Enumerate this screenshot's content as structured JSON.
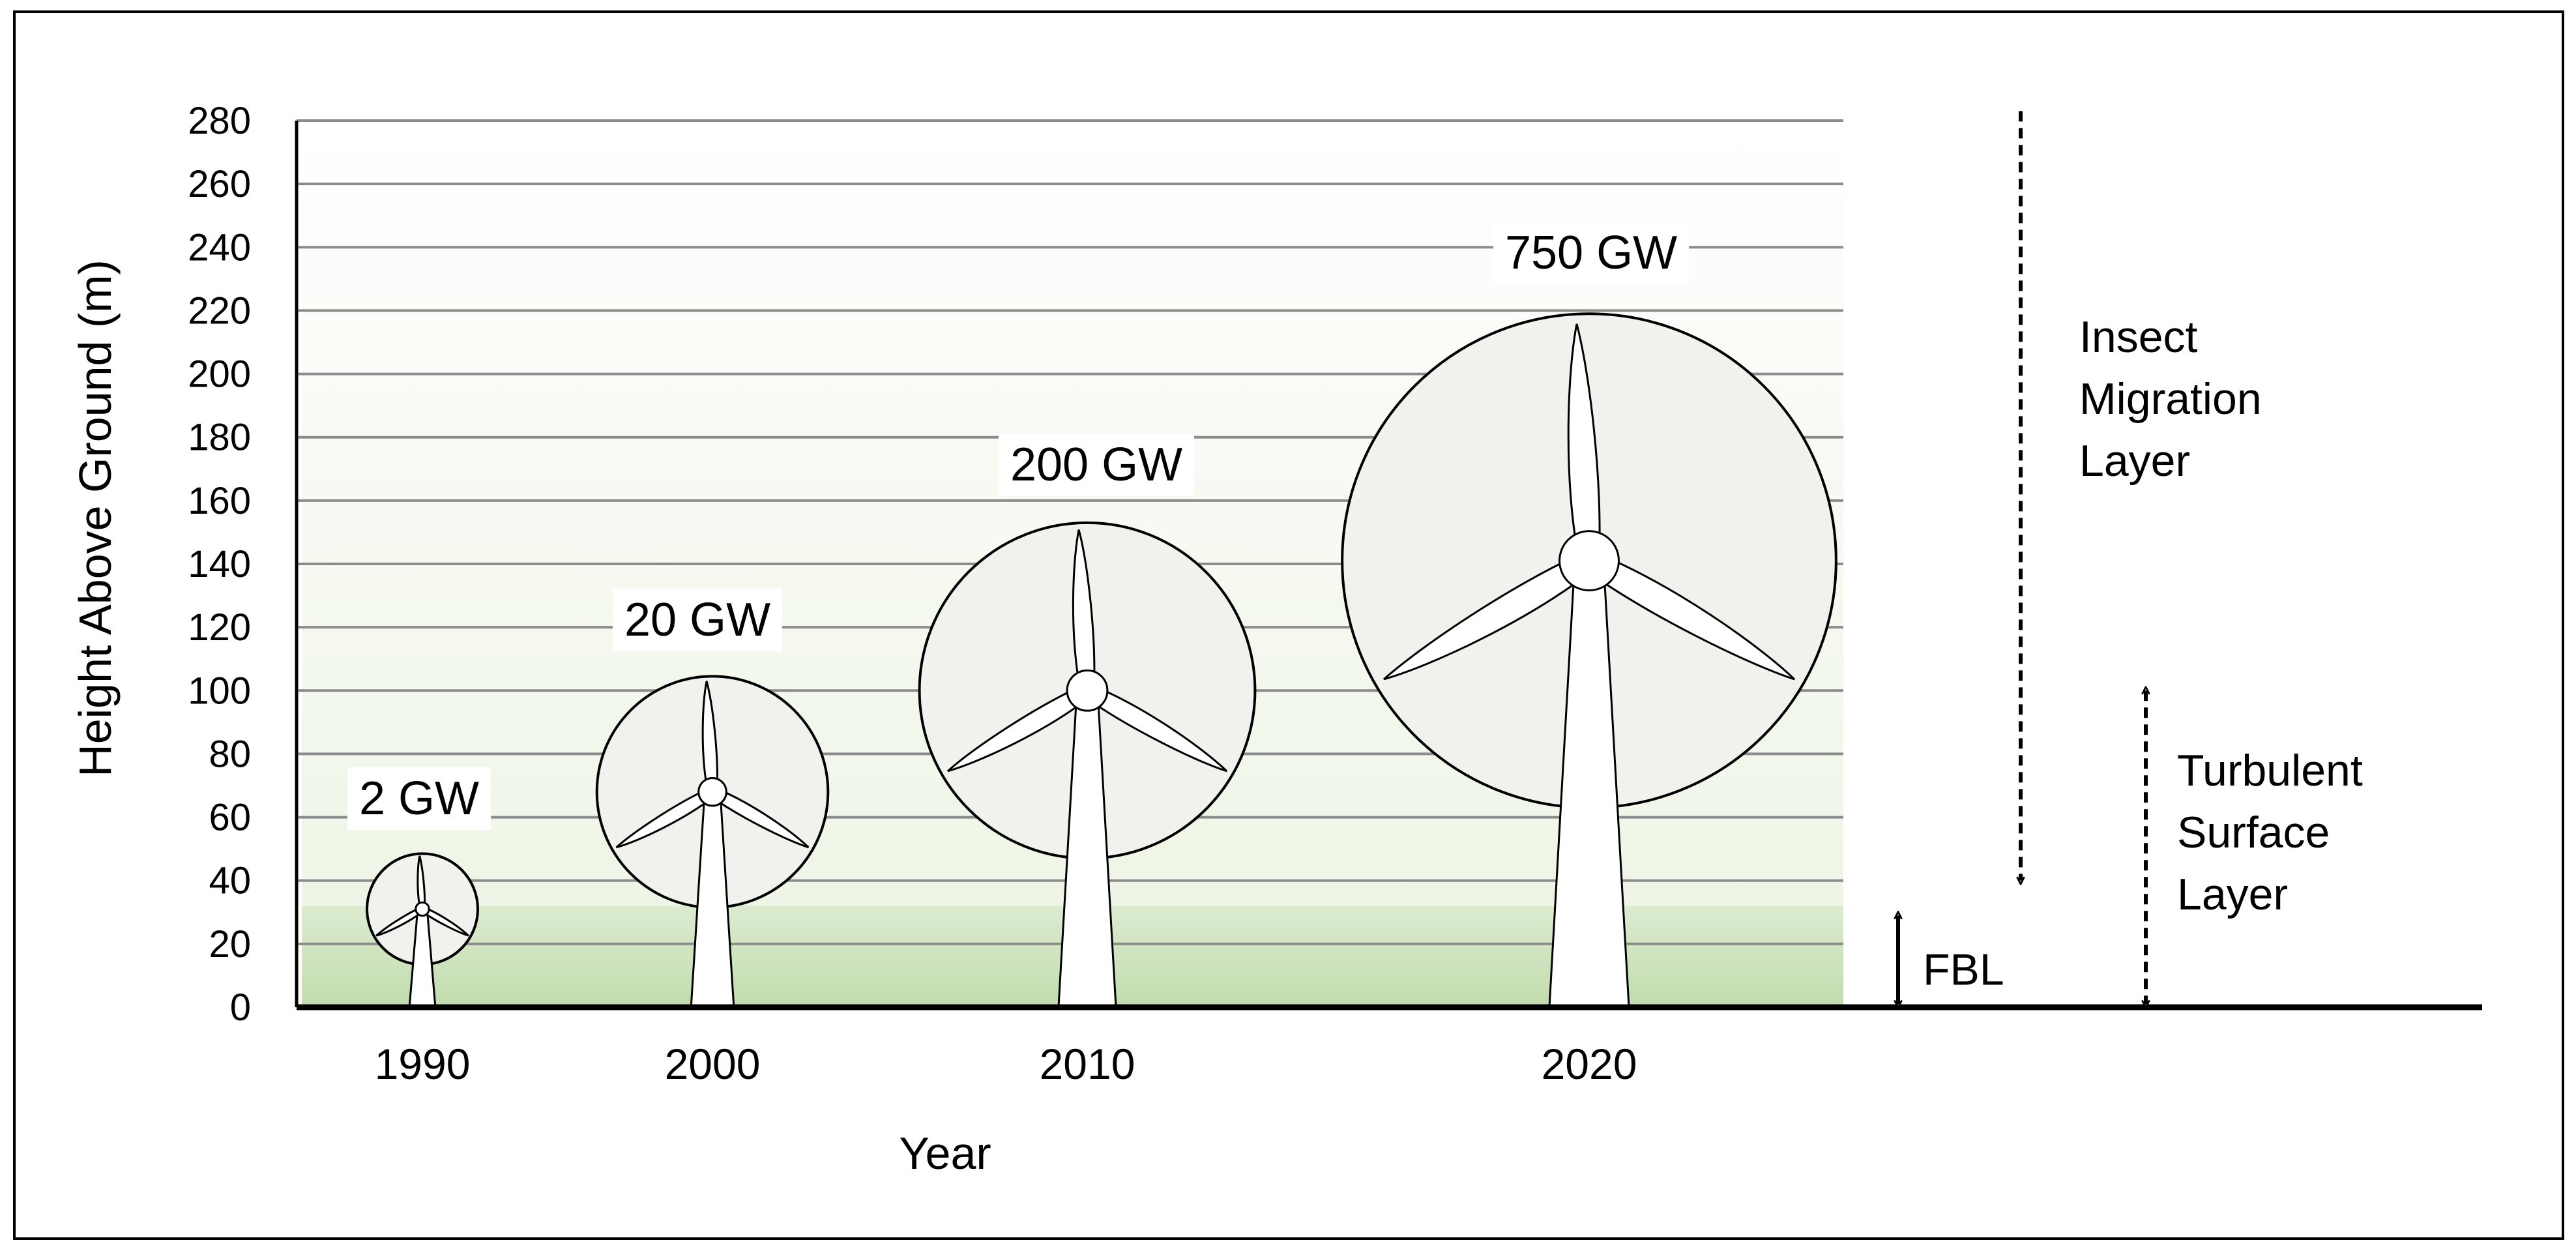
{
  "chart_data": {
    "type": "diagram",
    "ylabel": "Height Above Ground (m)",
    "xlabel": "Year",
    "ylim": [
      0,
      280
    ],
    "yticks": [
      0,
      20,
      40,
      60,
      80,
      100,
      120,
      140,
      160,
      180,
      200,
      220,
      240,
      260,
      280
    ],
    "grid": true,
    "turbines": [
      {
        "year": "1990",
        "capacity": "2 GW",
        "hub_height": 31,
        "rotor_top": 48,
        "rotor_bottom": 13
      },
      {
        "year": "2000",
        "capacity": "20 GW",
        "hub_height": 68,
        "rotor_top": 105,
        "rotor_bottom": 32
      },
      {
        "year": "2010",
        "capacity": "200 GW",
        "hub_height": 100,
        "rotor_top": 153,
        "rotor_bottom": 47
      },
      {
        "year": "2020",
        "capacity": "750 GW",
        "hub_height": 141,
        "rotor_top": 219,
        "rotor_bottom": 63
      }
    ],
    "layers": [
      {
        "label": "FBL",
        "direction": "both"
      },
      {
        "label": "Turbulent Surface Layer",
        "lines": [
          "Turbulent",
          "Surface",
          "Layer"
        ],
        "direction": "both"
      },
      {
        "label": "Insect Migration Layer",
        "lines": [
          "Insect",
          "Migration",
          "Layer"
        ],
        "direction": "down"
      }
    ],
    "colors": {
      "fbl_band": "#c5ddb1",
      "upper_gradient": "#eef5e6",
      "rotor_disc": "#f1f2ee",
      "gridline": "#8c8c8c"
    }
  }
}
